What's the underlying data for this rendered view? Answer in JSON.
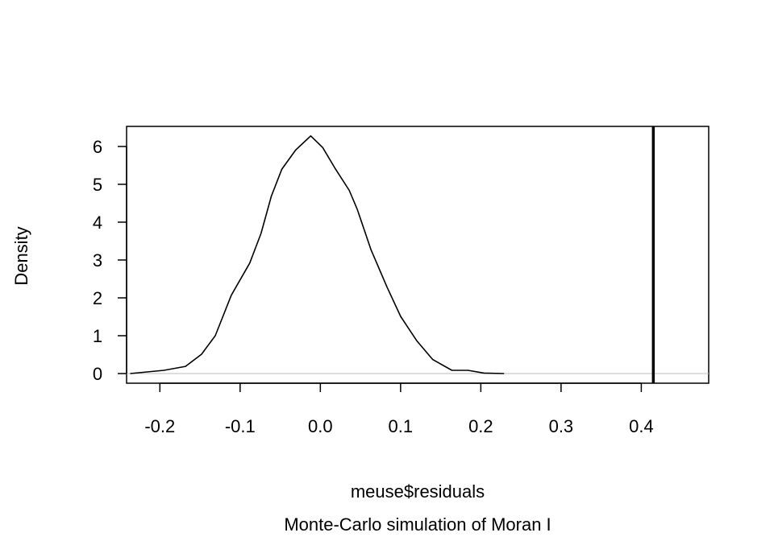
{
  "chart_data": {
    "type": "line",
    "title": "",
    "xlabel": "meuse$residuals",
    "subtitle": "Monte-Carlo simulation of Moran I",
    "ylabel": "Density",
    "xlim": [
      -0.2415,
      0.484
    ],
    "ylim": [
      -0.255,
      6.53
    ],
    "xticks": [
      -0.2,
      -0.1,
      0.0,
      0.1,
      0.2,
      0.3,
      0.4
    ],
    "xtick_labels": [
      "-0.2",
      "-0.1",
      "0.0",
      "0.1",
      "0.2",
      "0.3",
      "0.4"
    ],
    "yticks": [
      0,
      1,
      2,
      3,
      4,
      5,
      6
    ],
    "ytick_labels": [
      "0",
      "1",
      "2",
      "3",
      "4",
      "5",
      "6"
    ],
    "grid": false,
    "zero_line_color": "#bebebe",
    "series": [
      {
        "name": "density",
        "color": "#000000",
        "x": [
          -0.237,
          -0.195,
          -0.168,
          -0.148,
          -0.131,
          -0.111,
          -0.088,
          -0.074,
          -0.061,
          -0.048,
          -0.031,
          -0.012,
          0.003,
          0.019,
          0.036,
          0.046,
          0.063,
          0.083,
          0.1,
          0.12,
          0.14,
          0.164,
          0.184,
          0.204,
          0.229
        ],
        "y": [
          0,
          0.085,
          0.19,
          0.51,
          1.0,
          2.07,
          2.92,
          3.7,
          4.69,
          5.4,
          5.9,
          6.28,
          5.97,
          5.4,
          4.84,
          4.34,
          3.28,
          2.29,
          1.51,
          0.87,
          0.37,
          0.085,
          0.085,
          0.014,
          0
        ]
      }
    ],
    "observed_line": {
      "name": "observed Moran I",
      "x": 0.415,
      "color": "#000000"
    }
  }
}
